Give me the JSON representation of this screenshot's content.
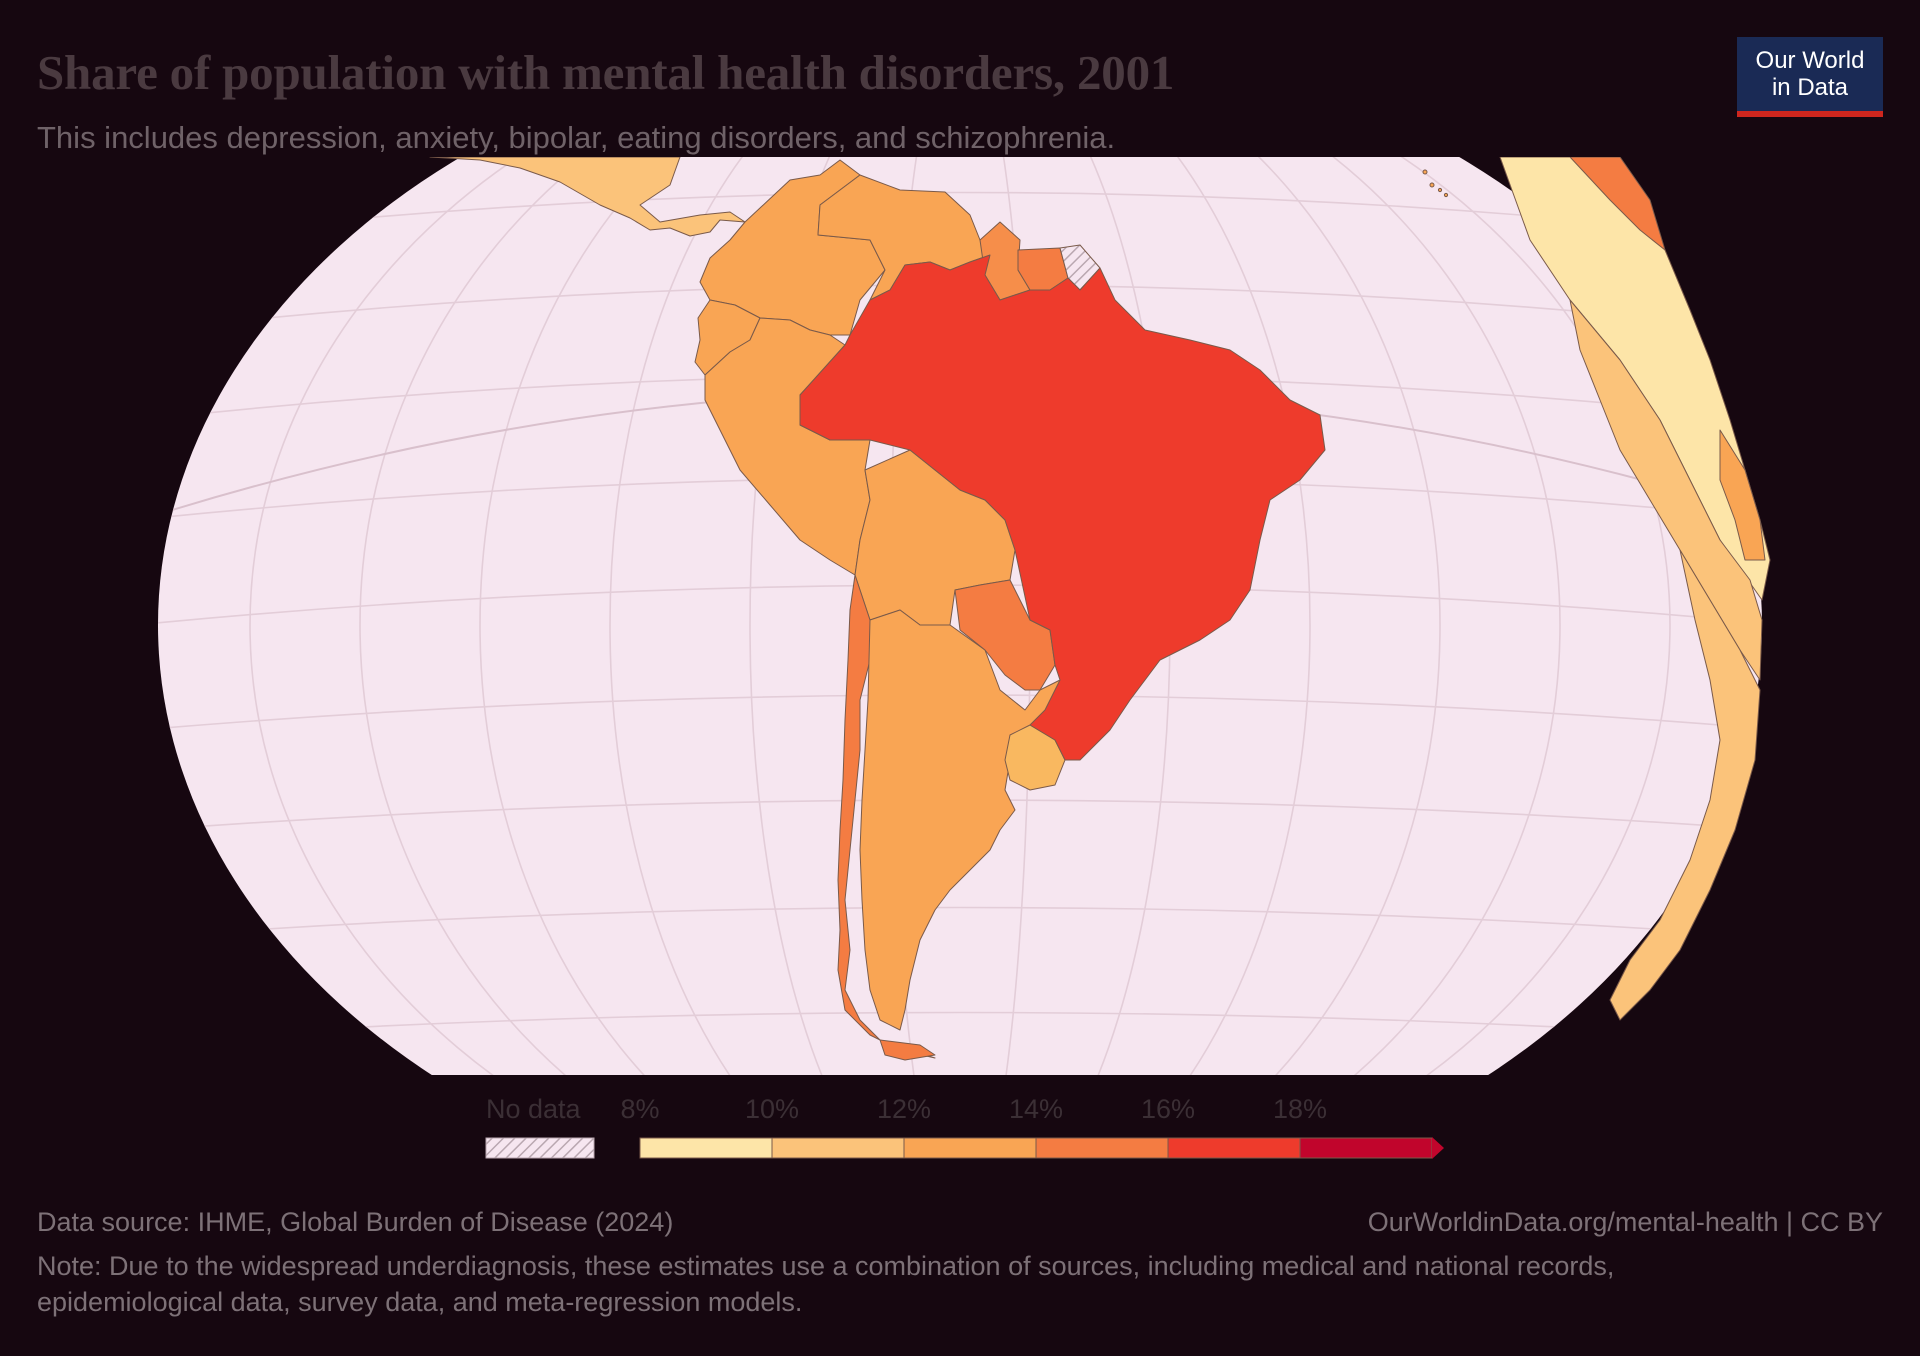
{
  "header": {
    "title": "Share of population with mental health disorders, 2001",
    "subtitle": "This includes depression, anxiety, bipolar, eating disorders, and schizophrenia."
  },
  "logo": {
    "line1": "Our World",
    "line2": "in Data"
  },
  "map": {
    "projection": "orthographic-style globe centred on South America",
    "ocean_color": "#f6e6f0",
    "graticule_color": "#e3cdd8",
    "regions": [
      {
        "name": "Brazil",
        "value_bin": "16–18%",
        "color": "#ee3b2c"
      },
      {
        "name": "Argentina",
        "value_bin": "10–12%",
        "color": "#f9a554"
      },
      {
        "name": "Chile",
        "value_bin": "14–16%",
        "color": "#f47c42"
      },
      {
        "name": "Peru",
        "value_bin": "10–12%",
        "color": "#f9a554"
      },
      {
        "name": "Bolivia",
        "value_bin": "10–12%",
        "color": "#f9a554"
      },
      {
        "name": "Colombia",
        "value_bin": "10–12%",
        "color": "#f9a554"
      },
      {
        "name": "Venezuela",
        "value_bin": "10–12%",
        "color": "#f9a554"
      },
      {
        "name": "Ecuador",
        "value_bin": "10–12%",
        "color": "#f9a554"
      },
      {
        "name": "Paraguay",
        "value_bin": "14–16%",
        "color": "#f47c42"
      },
      {
        "name": "Uruguay",
        "value_bin": "10–12%",
        "color": "#f9b860"
      },
      {
        "name": "Guyana",
        "value_bin": "12–14%",
        "color": "#f68e4a"
      },
      {
        "name": "Suriname",
        "value_bin": "14–16%",
        "color": "#f47c42"
      },
      {
        "name": "French Guiana",
        "value_bin": "No data",
        "color": "hatched"
      },
      {
        "name": "Central America",
        "value_bin": "8–12%",
        "color": "#fbc37a"
      },
      {
        "name": "West & Southern Africa",
        "value_bin": "8–12%",
        "color": "#fde5a8"
      }
    ]
  },
  "legend": {
    "no_data_label": "No data",
    "ticks": [
      "8%",
      "10%",
      "12%",
      "14%",
      "16%",
      "18%"
    ],
    "colors": [
      "#fde5a8",
      "#fbc37a",
      "#f9a554",
      "#f47c42",
      "#ee3b2c",
      "#c1052c"
    ]
  },
  "footer": {
    "source": "Data source: IHME, Global Burden of Disease (2024)",
    "url": "OurWorldinData.org/mental-health | CC BY",
    "note_line1": "Note: Due to the widespread underdiagnosis, these estimates use a combination of sources, including medical and national records,",
    "note_line2": "epidemiological data, survey data, and meta-regression models."
  }
}
